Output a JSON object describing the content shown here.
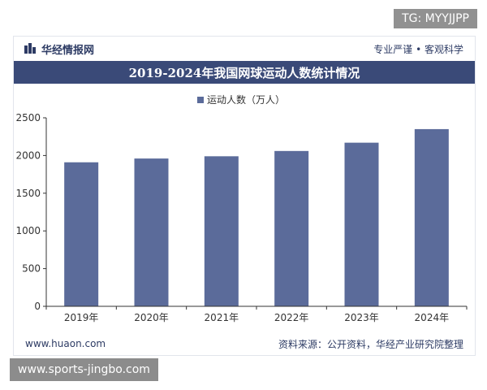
{
  "overlay": {
    "top_tag": "TG: MYYJJPP",
    "bottom_tag": "www.sports-jingbo.com"
  },
  "header": {
    "brand": "华经情报网",
    "slogan": "专业严谨 • 客观科学",
    "brand_color": "#2d3b64"
  },
  "footer": {
    "site": "www.huaon.com",
    "source": "资料来源：公开资料，华经产业研究院整理"
  },
  "chart_data": {
    "type": "bar",
    "title": "2019-2024年我国网球运动人数统计情况",
    "categories": [
      "2019年",
      "2020年",
      "2021年",
      "2022年",
      "2023年",
      "2024年"
    ],
    "series": [
      {
        "name": "运动人数（万人）",
        "values": [
          1910,
          1960,
          1990,
          2060,
          2170,
          2350
        ],
        "color": "#5b6b9a"
      }
    ],
    "ylim": [
      0,
      2500
    ],
    "yticks": [
      0,
      500,
      1000,
      1500,
      2000,
      2500
    ],
    "grid": false,
    "legend": "top-center"
  }
}
